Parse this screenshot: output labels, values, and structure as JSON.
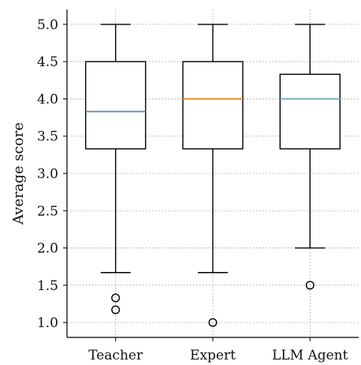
{
  "chart_data": {
    "type": "box",
    "title": "",
    "xlabel": "",
    "ylabel": "Average score",
    "ylim": [
      0.8,
      5.2
    ],
    "yticks": [
      1.0,
      1.5,
      2.0,
      2.5,
      3.0,
      3.5,
      4.0,
      4.5,
      5.0
    ],
    "ytick_labels": [
      "1.0",
      "1.5",
      "2.0",
      "2.5",
      "3.0",
      "3.5",
      "4.0",
      "4.5",
      "5.0"
    ],
    "grid": true,
    "categories": [
      "Teacher",
      "Expert",
      "LLM Agent"
    ],
    "boxes": [
      {
        "name": "Teacher",
        "whisker_low": 1.67,
        "q1": 3.33,
        "median": 3.83,
        "q3": 4.5,
        "whisker_high": 5.0,
        "outliers": [
          1.33,
          1.17
        ],
        "median_color": "#5b84b1"
      },
      {
        "name": "Expert",
        "whisker_low": 1.67,
        "q1": 3.33,
        "median": 4.0,
        "q3": 4.5,
        "whisker_high": 5.0,
        "outliers": [
          1.0
        ],
        "median_color": "#e8862a"
      },
      {
        "name": "LLM Agent",
        "whisker_low": 2.0,
        "q1": 3.33,
        "median": 4.0,
        "q3": 4.33,
        "whisker_high": 5.0,
        "outliers": [
          1.5
        ],
        "median_color": "#72a9b8"
      }
    ]
  }
}
